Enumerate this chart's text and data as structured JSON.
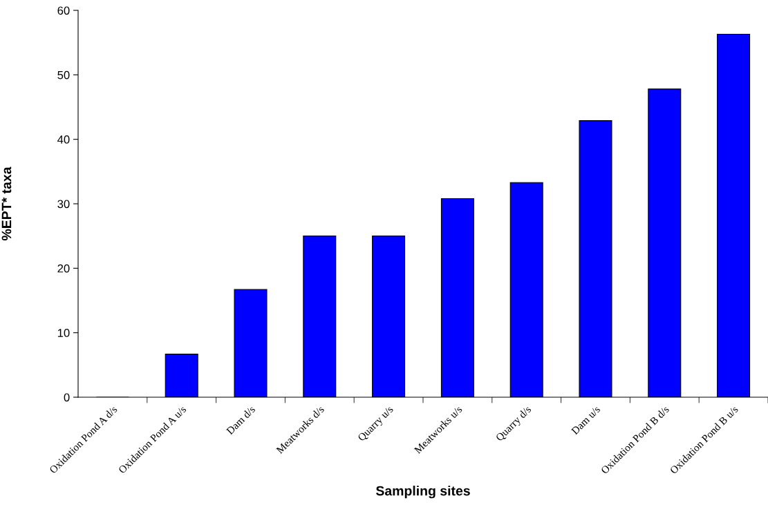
{
  "chart_data": {
    "type": "bar",
    "xlabel": "Sampling sites",
    "ylabel": "%EPT* taxa",
    "categories": [
      "Oxidation Pond A d/s",
      "Oxidation Pond A u/s",
      "Dam d/s",
      "Meatworks d/s",
      "Quarry u/s",
      "Meatworks u/s",
      "Quarry d/s",
      "Dam u/s",
      "Oxidation Pond B d/s",
      "Oxidation Pond B u/s"
    ],
    "values": [
      0,
      6.7,
      16.7,
      25,
      25,
      30.8,
      33.3,
      42.9,
      47.8,
      56.3
    ],
    "color": "#0000ff",
    "ylim": [
      0,
      60
    ],
    "yticks": [
      0,
      10,
      20,
      30,
      40,
      50,
      60
    ],
    "grid": false,
    "legend": false
  }
}
